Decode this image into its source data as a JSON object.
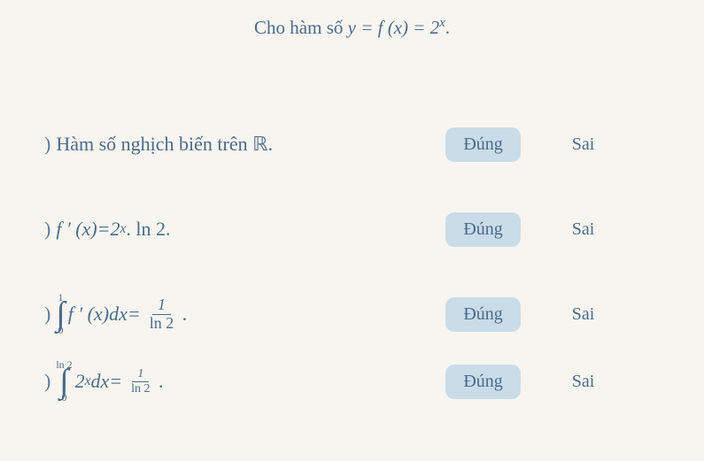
{
  "colors": {
    "background": "#f8f5f0",
    "text": "#4a6a8a",
    "button_bg": "#c9dce8"
  },
  "header": {
    "prefix": "Cho hàm số ",
    "equation": "y = f (x) = 2",
    "exponent": "x",
    "suffix": "."
  },
  "buttons": {
    "true_label": "Đúng",
    "false_label": "Sai"
  },
  "questions": {
    "q1": {
      "text": "Hàm số nghịch biến trên ",
      "set_symbol": "ℝ",
      "suffix": "."
    },
    "q2": {
      "lhs_f": "f ′ (x)",
      "eq": " = ",
      "base": "2",
      "exp": "x",
      "tail": ". ln 2."
    },
    "q3": {
      "int_upper": "1",
      "int_lower": "0",
      "integrand_f": "f ′ (x)",
      "integrand_dx": "dx",
      "eq": " = ",
      "frac_num": "1",
      "frac_den": "ln 2",
      "suffix": "."
    },
    "q4": {
      "int_upper": "ln 2",
      "int_lower": "0",
      "base": "2",
      "exp": "x",
      "dx": "dx",
      "eq": " = ",
      "frac_num": "1",
      "frac_den": "ln 2",
      "suffix": "."
    }
  }
}
